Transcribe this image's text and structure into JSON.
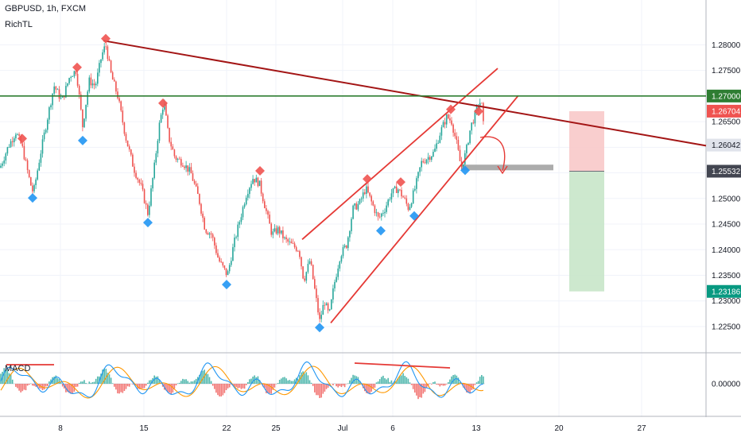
{
  "header": {
    "symbol_line": "GBPUSD, 1h, FXCM",
    "indicator": "RichTL",
    "macd_label": "MACD"
  },
  "colors": {
    "up": "#26a69a",
    "down": "#ef5350",
    "pivot_high": "#ef5350",
    "pivot_low": "#2196f3",
    "trendline": "#a31515",
    "channel": "#e53935",
    "resistance": "#2e7d32",
    "stop_zone": "#f8c6c6",
    "target_zone": "#c8e6c9",
    "macd_line": "#2196f3",
    "signal_line": "#ff9800",
    "grid": "#f0f3fa",
    "axis_text": "#131722"
  },
  "chart_data": [
    {
      "type": "candlestick",
      "title": "GBPUSD, 1h, FXCM",
      "x_ticks": [
        "8",
        "15",
        "22",
        "25",
        "Jul",
        "6",
        "13",
        "20",
        "27"
      ],
      "y_ticks": [
        "1.28000",
        "1.27500",
        "1.27000",
        "1.26500",
        "1.26000",
        "1.25500",
        "1.25000",
        "1.24500",
        "1.24000",
        "1.23500",
        "1.23000",
        "1.22500"
      ],
      "ylim": [
        1.2205,
        1.2875
      ],
      "price_labels": [
        {
          "value": 1.27,
          "text": "1.27000",
          "color": "#2e7d32"
        },
        {
          "value": 1.26704,
          "text": "1.26704",
          "color": "#ef5350"
        },
        {
          "value": 1.26042,
          "text": "1.26042",
          "color": "#e0e3eb"
        },
        {
          "value": 1.25532,
          "text": "1.25532",
          "color": "#434651"
        },
        {
          "value": 1.23186,
          "text": "1.23186",
          "color": "#089981"
        }
      ],
      "close_path": [
        [
          0,
          1.256
        ],
        [
          10,
          1.26
        ],
        [
          20,
          1.263
        ],
        [
          28,
          1.26
        ],
        [
          38,
          1.253
        ],
        [
          42,
          1.251
        ],
        [
          50,
          1.258
        ],
        [
          60,
          1.266
        ],
        [
          68,
          1.272
        ],
        [
          78,
          1.269
        ],
        [
          88,
          1.274
        ],
        [
          96,
          1.275
        ],
        [
          104,
          1.264
        ],
        [
          112,
          1.273
        ],
        [
          120,
          1.272
        ],
        [
          128,
          1.278
        ],
        [
          133,
          1.28
        ],
        [
          140,
          1.274
        ],
        [
          148,
          1.27
        ],
        [
          158,
          1.262
        ],
        [
          168,
          1.256
        ],
        [
          178,
          1.252
        ],
        [
          186,
          1.247
        ],
        [
          194,
          1.256
        ],
        [
          200,
          1.264
        ],
        [
          206,
          1.269
        ],
        [
          212,
          1.262
        ],
        [
          220,
          1.258
        ],
        [
          230,
          1.257
        ],
        [
          240,
          1.255
        ],
        [
          250,
          1.25
        ],
        [
          258,
          1.244
        ],
        [
          266,
          1.243
        ],
        [
          275,
          1.238
        ],
        [
          286,
          1.235
        ],
        [
          294,
          1.241
        ],
        [
          302,
          1.246
        ],
        [
          310,
          1.251
        ],
        [
          318,
          1.254
        ],
        [
          326,
          1.253
        ],
        [
          334,
          1.248
        ],
        [
          342,
          1.243
        ],
        [
          350,
          1.244
        ],
        [
          358,
          1.242
        ],
        [
          366,
          1.241
        ],
        [
          376,
          1.24
        ],
        [
          382,
          1.234
        ],
        [
          390,
          1.238
        ],
        [
          396,
          1.232
        ],
        [
          402,
          1.226
        ],
        [
          408,
          1.23
        ],
        [
          414,
          1.227
        ],
        [
          420,
          1.233
        ],
        [
          428,
          1.239
        ],
        [
          436,
          1.241
        ],
        [
          444,
          1.248
        ],
        [
          452,
          1.249
        ],
        [
          460,
          1.252
        ],
        [
          468,
          1.249
        ],
        [
          476,
          1.246
        ],
        [
          484,
          1.248
        ],
        [
          492,
          1.251
        ],
        [
          500,
          1.252
        ],
        [
          508,
          1.25
        ],
        [
          514,
          1.248
        ],
        [
          522,
          1.252
        ],
        [
          530,
          1.257
        ],
        [
          538,
          1.258
        ],
        [
          546,
          1.259
        ],
        [
          554,
          1.263
        ],
        [
          562,
          1.266
        ],
        [
          568,
          1.265
        ],
        [
          574,
          1.261
        ],
        [
          580,
          1.256
        ],
        [
          586,
          1.259
        ],
        [
          592,
          1.264
        ],
        [
          598,
          1.2665
        ],
        [
          603,
          1.269
        ],
        [
          606,
          1.268
        ],
        [
          610,
          1.2604
        ]
      ],
      "pivot_highs": [
        [
          28,
          1.2617
        ],
        [
          97,
          1.2756
        ],
        [
          133,
          1.2812
        ],
        [
          205,
          1.2686
        ],
        [
          327,
          1.2554
        ],
        [
          462,
          1.2538
        ],
        [
          504,
          1.2532
        ],
        [
          567,
          1.2674
        ],
        [
          602,
          1.267
        ]
      ],
      "pivot_lows": [
        [
          41,
          1.2501
        ],
        [
          104,
          1.2613
        ],
        [
          186,
          1.2453
        ],
        [
          285,
          1.2332
        ],
        [
          402,
          1.2248
        ],
        [
          479,
          1.2437
        ],
        [
          521,
          1.2466
        ],
        [
          585,
          1.2555
        ]
      ],
      "lines": [
        {
          "name": "descending-trendline",
          "from": [
            130,
            1.2808
          ],
          "to": [
            888,
            1.2603
          ]
        },
        {
          "name": "channel-upper",
          "from": [
            380,
            1.242
          ],
          "to": [
            626,
            1.2754
          ]
        },
        {
          "name": "channel-lower",
          "from": [
            416,
            1.2257
          ],
          "to": [
            652,
            1.2701
          ]
        },
        {
          "name": "horizontal-resistance",
          "from": [
            0,
            1.27
          ],
          "to": [
            888,
            1.27
          ]
        }
      ],
      "entry_zone": {
        "from": [
          580,
          1.2566
        ],
        "to": [
          696,
          1.2555
        ]
      },
      "position": {
        "x_from": 716,
        "x_to": 760,
        "stop": 1.26704,
        "entry": 1.25532,
        "target": 1.23186
      }
    },
    {
      "type": "macd",
      "title": "MACD",
      "y_ticks": [
        "0.00000"
      ],
      "zero": 0.0,
      "hist_range": [
        -0.0015,
        0.0015
      ],
      "divergence_lines": [
        {
          "name": "divergence-left",
          "from": [
            8,
            0.0012
          ],
          "to": [
            68,
            0.0012
          ]
        },
        {
          "name": "divergence-right",
          "from": [
            446,
            0.0013
          ],
          "to": [
            566,
            0.001
          ]
        }
      ]
    }
  ]
}
